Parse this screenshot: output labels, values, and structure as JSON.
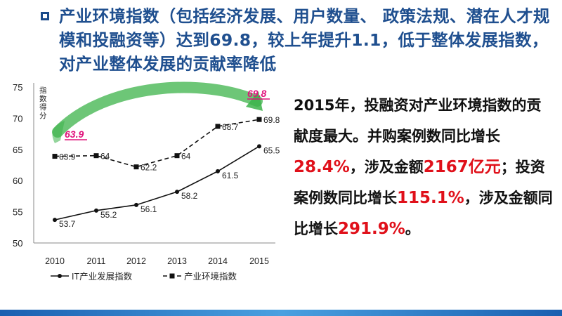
{
  "title": "产业环境指数（包括经济发展、用户数量、 政策法规、潜在人才规模和投融资等）达到69.8，较上年提升1.1，低于整体发展指数，对产业整体发展的贡献率降低",
  "side_text": {
    "p1": "2015年，投融资对产业环境指数的贡献度最大。并购案例数同比增长",
    "h1": "28.4%",
    "p2": "，涉及金额",
    "h2": "2167亿元",
    "p3": "；投资案例数同比增长",
    "h3": "115.1%",
    "p4": "，涉及金额同比增长",
    "h4": "291.9%",
    "p5": "。"
  },
  "chart_data": {
    "type": "line",
    "x": [
      "2010",
      "2011",
      "2012",
      "2013",
      "2014",
      "2015"
    ],
    "ylabel": "指数得分",
    "ylim": [
      50,
      75
    ],
    "yticks": [
      50,
      55,
      60,
      65,
      70,
      75
    ],
    "series": [
      {
        "name": "IT产业发展指数",
        "values": [
          53.7,
          55.2,
          56.1,
          58.2,
          61.5,
          65.5
        ],
        "labels": [
          "53.7",
          "55.2",
          "56.1",
          "58.2",
          "61.5",
          "65.5"
        ],
        "style": "solid"
      },
      {
        "name": "产业环境指数",
        "values": [
          63.9,
          64,
          62.2,
          64,
          68.7,
          69.8
        ],
        "labels": [
          "63.9",
          "64",
          "62.2",
          "64",
          "68.7",
          "69.8"
        ],
        "style": "dashed"
      }
    ],
    "annotations": [
      {
        "text": "63.9",
        "color": "#e0107a"
      },
      {
        "text": "69.8",
        "color": "#e0107a"
      }
    ],
    "arrow_color": "#3cb34a"
  }
}
